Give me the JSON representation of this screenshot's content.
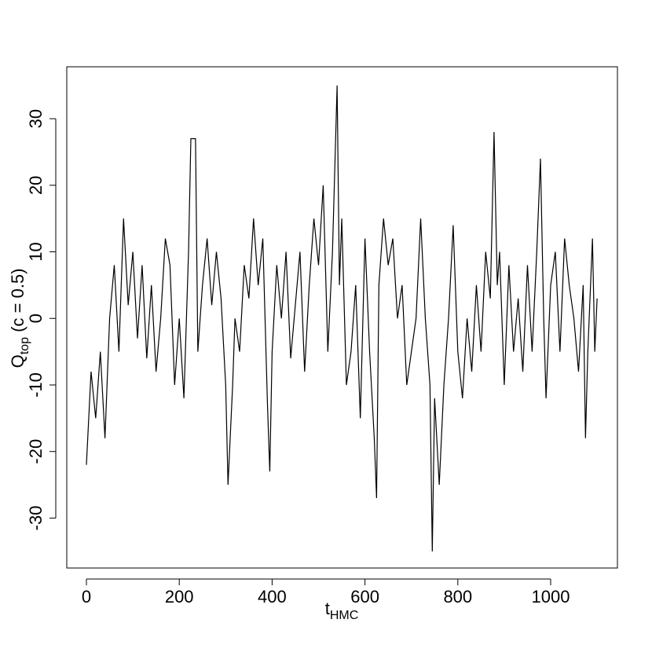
{
  "chart_data": {
    "type": "line",
    "xlabel": {
      "main": "t",
      "sub": "HMC"
    },
    "ylabel": {
      "main": "Q",
      "sub": "top",
      "rest": " (c = 0.5)"
    },
    "x": [
      0,
      10,
      20,
      30,
      40,
      50,
      60,
      70,
      80,
      90,
      100,
      110,
      120,
      130,
      140,
      150,
      160,
      170,
      180,
      190,
      200,
      210,
      220,
      225,
      235,
      240,
      250,
      260,
      270,
      280,
      290,
      300,
      305,
      315,
      320,
      330,
      340,
      350,
      360,
      370,
      380,
      390,
      395,
      400,
      410,
      420,
      430,
      440,
      450,
      460,
      470,
      480,
      490,
      500,
      510,
      520,
      530,
      540,
      545,
      550,
      560,
      570,
      580,
      590,
      600,
      610,
      620,
      625,
      630,
      640,
      650,
      660,
      670,
      680,
      690,
      700,
      710,
      720,
      730,
      740,
      745,
      750,
      760,
      770,
      780,
      790,
      800,
      810,
      820,
      830,
      840,
      850,
      860,
      870,
      878,
      885,
      890,
      900,
      910,
      920,
      930,
      940,
      950,
      960,
      970,
      978,
      985,
      990,
      1000,
      1010,
      1020,
      1030,
      1040,
      1050,
      1060,
      1070,
      1075,
      1080,
      1090,
      1095,
      1100
    ],
    "series": [
      {
        "name": "Qtop",
        "color": "#000000",
        "values": [
          -22,
          -8,
          -15,
          -5,
          -18,
          0,
          8,
          -5,
          15,
          2,
          10,
          -3,
          8,
          -6,
          5,
          -8,
          0,
          12,
          8,
          -10,
          0,
          -12,
          10,
          27,
          27,
          -5,
          5,
          12,
          2,
          10,
          3,
          -10,
          -25,
          -10,
          0,
          -5,
          8,
          3,
          15,
          5,
          12,
          -13,
          -23,
          -5,
          8,
          0,
          10,
          -6,
          2,
          10,
          -8,
          5,
          15,
          8,
          20,
          -5,
          10,
          35,
          5,
          15,
          -10,
          -5,
          5,
          -15,
          12,
          -5,
          -18,
          -27,
          5,
          15,
          8,
          12,
          0,
          5,
          -10,
          -5,
          0,
          15,
          0,
          -10,
          -35,
          -12,
          -25,
          -10,
          0,
          14,
          -5,
          -12,
          0,
          -8,
          5,
          -5,
          10,
          3,
          28,
          5,
          10,
          -10,
          8,
          -5,
          3,
          -8,
          8,
          -5,
          10,
          24,
          0,
          -12,
          5,
          10,
          -5,
          12,
          5,
          0,
          -8,
          5,
          -18,
          -5,
          12,
          -5,
          3
        ]
      }
    ],
    "xlim": [
      -42.3,
      1143.8
    ],
    "ylim": [
      -37.5,
      37.8
    ],
    "xticks": [
      0,
      200,
      400,
      600,
      800,
      1000
    ],
    "yticks": [
      -30,
      -20,
      -10,
      0,
      10,
      20,
      30
    ]
  }
}
